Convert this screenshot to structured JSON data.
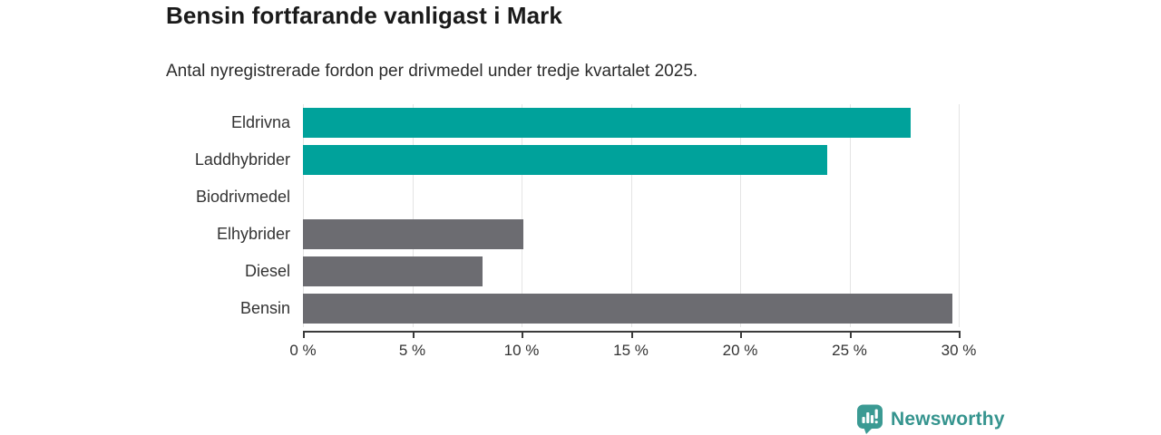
{
  "header": {
    "title": "Bensin fortfarande vanligast i Mark",
    "subtitle": "Antal nyregistrerade fordon per drivmedel under tredje kvartalet 2025."
  },
  "chart_data": {
    "type": "bar",
    "orientation": "horizontal",
    "title": "Bensin fortfarande vanligast i Mark",
    "subtitle": "Antal nyregistrerade fordon per drivmedel under tredje kvartalet 2025.",
    "categories": [
      "Eldrivna",
      "Laddhybrider",
      "Biodrivmedel",
      "Elhybrider",
      "Diesel",
      "Bensin"
    ],
    "values": [
      27.8,
      24.0,
      0,
      10.1,
      8.2,
      29.7
    ],
    "unit": "%",
    "bar_colors": [
      "#00a29b",
      "#00a29b",
      "#00a29b",
      "#6c6c71",
      "#6c6c71",
      "#6c6c71"
    ],
    "xlabel": "",
    "ylabel": "",
    "xlim": [
      0,
      30
    ],
    "x_ticks": [
      0,
      5,
      10,
      15,
      20,
      25,
      30
    ],
    "x_tick_labels": [
      "0 %",
      "5 %",
      "10 %",
      "15 %",
      "20 %",
      "25 %",
      "30 %"
    ],
    "grid": "vertical-only",
    "legend": "none"
  },
  "footer": {
    "brand": "Newsworthy"
  },
  "colors": {
    "accent_teal": "#00a29b",
    "bar_gray": "#6c6c71",
    "gridline": "#e4e4e4",
    "axis": "#3b3b3b",
    "title_text": "#1a1a1a",
    "body_text": "#333333",
    "brand_teal": "#35948e"
  }
}
